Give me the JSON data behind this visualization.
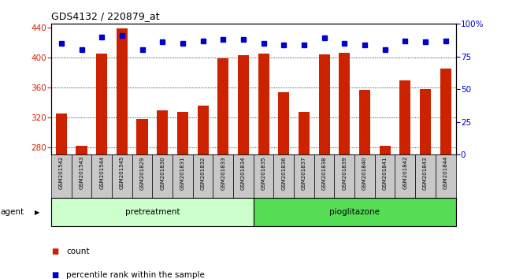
{
  "title": "GDS4132 / 220879_at",
  "samples": [
    "GSM201542",
    "GSM201543",
    "GSM201544",
    "GSM201545",
    "GSM201829",
    "GSM201830",
    "GSM201831",
    "GSM201832",
    "GSM201833",
    "GSM201834",
    "GSM201835",
    "GSM201836",
    "GSM201837",
    "GSM201838",
    "GSM201839",
    "GSM201840",
    "GSM201841",
    "GSM201842",
    "GSM201843",
    "GSM201844"
  ],
  "counts": [
    325,
    282,
    405,
    439,
    318,
    329,
    327,
    336,
    399,
    403,
    405,
    354,
    327,
    404,
    406,
    357,
    282,
    369,
    358,
    385
  ],
  "percentile_ranks": [
    85,
    80,
    90,
    91,
    80,
    86,
    85,
    87,
    88,
    88,
    85,
    84,
    84,
    89,
    85,
    84,
    80,
    87,
    86,
    87
  ],
  "group1_label": "pretreatment",
  "group2_label": "pioglitazone",
  "group1_count": 10,
  "group2_count": 10,
  "bar_color": "#cc2200",
  "dot_color": "#0000cc",
  "ylim_left": [
    270,
    445
  ],
  "yticks_left": [
    280,
    320,
    360,
    400,
    440
  ],
  "ylim_right": [
    0,
    100
  ],
  "yticks_right": [
    0,
    25,
    50,
    75,
    100
  ],
  "legend_count_label": "count",
  "legend_pct_label": "percentile rank within the sample",
  "agent_label": "agent",
  "group1_bg": "#ccffcc",
  "group2_bg": "#55dd55",
  "bar_bottom": 270
}
